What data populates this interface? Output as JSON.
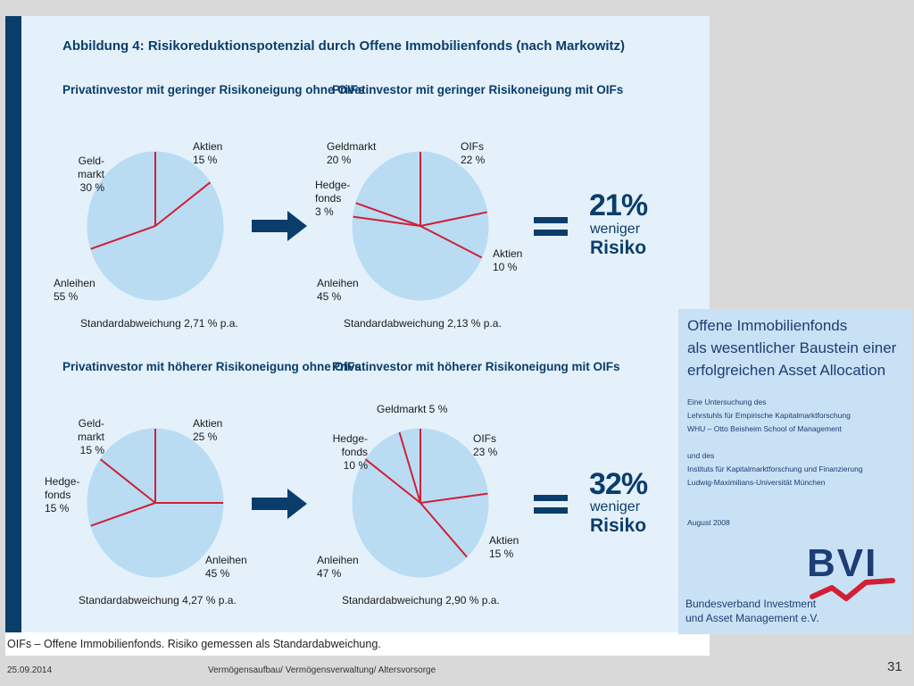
{
  "figure_title": "Abbildung 4: Risikoreduktionspotenzial durch Offene Immobilienfonds (nach Markowitz)",
  "colors": {
    "pie_fill": "#b9dcf3",
    "divider": "#cf2036",
    "navy": "#0b3d6b"
  },
  "chart_data": [
    {
      "type": "pie",
      "title": "Privatinvestor mit geringer\nRisikoneigung ohne OIFs",
      "slices": [
        {
          "label": "Aktien",
          "value": 15
        },
        {
          "label": "Anleihen",
          "value": 55
        },
        {
          "label": "Geld-\nmarkt",
          "value": 30
        }
      ],
      "slice_labels": [
        "Aktien\n15 %",
        "Anleihen\n55 %",
        "Geld-\nmarkt\n30 %"
      ],
      "std_label": "Standardabweichung 2,71 % p.a."
    },
    {
      "type": "pie",
      "title": "Privatinvestor mit geringer\nRisikoneigung mit OIFs",
      "slices": [
        {
          "label": "OIFs",
          "value": 22
        },
        {
          "label": "Aktien",
          "value": 10
        },
        {
          "label": "Anleihen",
          "value": 45
        },
        {
          "label": "Hedge-\nfonds",
          "value": 3
        },
        {
          "label": "Geldmarkt",
          "value": 20
        }
      ],
      "slice_labels": [
        "OIFs\n22 %",
        "Aktien\n10 %",
        "Anleihen\n45 %",
        "Hedge-\nfonds\n3 %",
        "Geldmarkt\n20 %"
      ],
      "std_label": "Standardabweichung 2,13 % p.a."
    },
    {
      "type": "pie",
      "title": "Privatinvestor mit höherer\nRisikoneigung ohne OIFs",
      "slices": [
        {
          "label": "Aktien",
          "value": 25
        },
        {
          "label": "Anleihen",
          "value": 45
        },
        {
          "label": "Hedge-\nfonds",
          "value": 15
        },
        {
          "label": "Geld-\nmarkt",
          "value": 15
        }
      ],
      "slice_labels": [
        "Aktien\n25 %",
        "Anleihen\n45 %",
        "Hedge-\nfonds\n15 %",
        "Geld-\nmarkt\n15 %"
      ],
      "std_label": "Standardabweichung 4,27 % p.a."
    },
    {
      "type": "pie",
      "title": "Privatinvestor mit höherer\nRisikoneigung mit OIFs",
      "slices": [
        {
          "label": "OIFs",
          "value": 23
        },
        {
          "label": "Aktien",
          "value": 15
        },
        {
          "label": "Anleihen",
          "value": 47
        },
        {
          "label": "Hedge-\nfonds",
          "value": 10
        },
        {
          "label": "Geldmarkt",
          "value": 5
        }
      ],
      "slice_labels": [
        "OIFs\n23 %",
        "Aktien\n15 %",
        "Anleihen\n47 %",
        "Hedge-\nfonds\n10 %",
        "Geldmarkt 5 %"
      ],
      "std_label": "Standardabweichung 2,90 % p.a."
    }
  ],
  "reductions": [
    {
      "percent": "21%",
      "word": "weniger",
      "risk": "Risiko"
    },
    {
      "percent": "32%",
      "word": "weniger",
      "risk": "Risiko"
    }
  ],
  "footnote": "OIFs – Offene Immobilienfonds. Risiko gemessen als Standardabweichung.",
  "cover": {
    "title_lines": [
      "Offene Immobilienfonds",
      "als wesentlicher Baustein einer",
      "erfolgreichen Asset Allocation"
    ],
    "study_lines": [
      "Eine Untersuchung des",
      "Lehrstuhls für Empirische Kapitalmarktforschung",
      "WHU – Otto Beisheim School of Management"
    ],
    "and_lines": [
      "und des",
      "Instituts für Kapitalmarktforschung und Finanzierung",
      "Ludwig-Maximilians-Universität München"
    ],
    "date": "August 2008",
    "logo_text": "BVI",
    "org_lines": [
      "Bundesverband Investment",
      "und Asset Management e.V."
    ]
  },
  "footer": {
    "date": "25.09.2014",
    "center": "Vermögensaufbau/ Vermögensverwaltung/ Altersvorsorge",
    "page": "31"
  }
}
